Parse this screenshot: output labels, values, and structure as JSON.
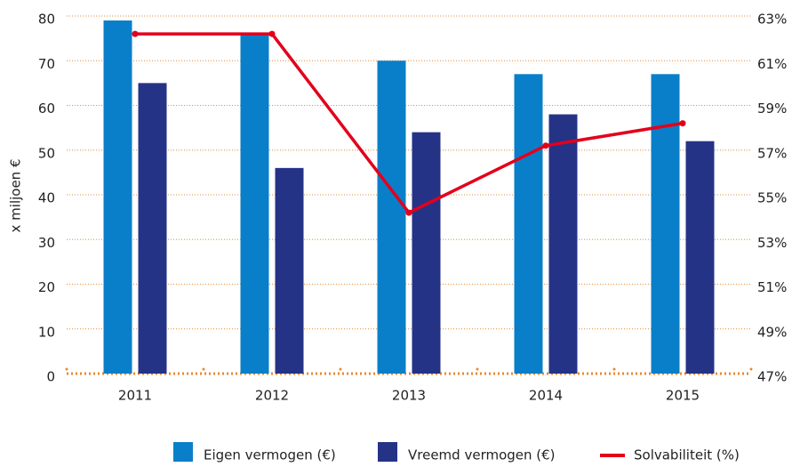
{
  "chart_data": {
    "type": "bar_line",
    "y_axis_label": "x miljoen €",
    "categories": [
      "2011",
      "2012",
      "2013",
      "2014",
      "2015"
    ],
    "series": [
      {
        "name": "Eigen vermogen (€)",
        "color": "#0a7fc9",
        "type": "bar",
        "values": [
          79,
          76,
          70,
          67,
          67
        ]
      },
      {
        "name": "Vreemd vermogen (€)",
        "color": "#253387",
        "type": "bar",
        "values": [
          65,
          46,
          54,
          58,
          52
        ]
      },
      {
        "name": "Solvabiliteit (%)",
        "color": "#e3001b",
        "type": "line",
        "axis": "y2",
        "values": [
          62.2,
          62.2,
          54.2,
          57.2,
          58.2
        ]
      }
    ],
    "ylim": [
      0,
      80
    ],
    "yticks": [
      0,
      10,
      20,
      30,
      40,
      50,
      60,
      70,
      80
    ],
    "y2lim": [
      47,
      63
    ],
    "y2ticks": [
      {
        "value": 47,
        "label": "47%"
      },
      {
        "value": 49,
        "label": "49%"
      },
      {
        "value": 51,
        "label": "51%"
      },
      {
        "value": 53,
        "label": "53%"
      },
      {
        "value": 55,
        "label": "55%"
      },
      {
        "value": 57,
        "label": "57%"
      },
      {
        "value": 59,
        "label": "59%"
      },
      {
        "value": 61,
        "label": "61%"
      },
      {
        "value": 63,
        "label": "63%"
      }
    ],
    "grid": true,
    "grid_color": "#e8892e"
  }
}
